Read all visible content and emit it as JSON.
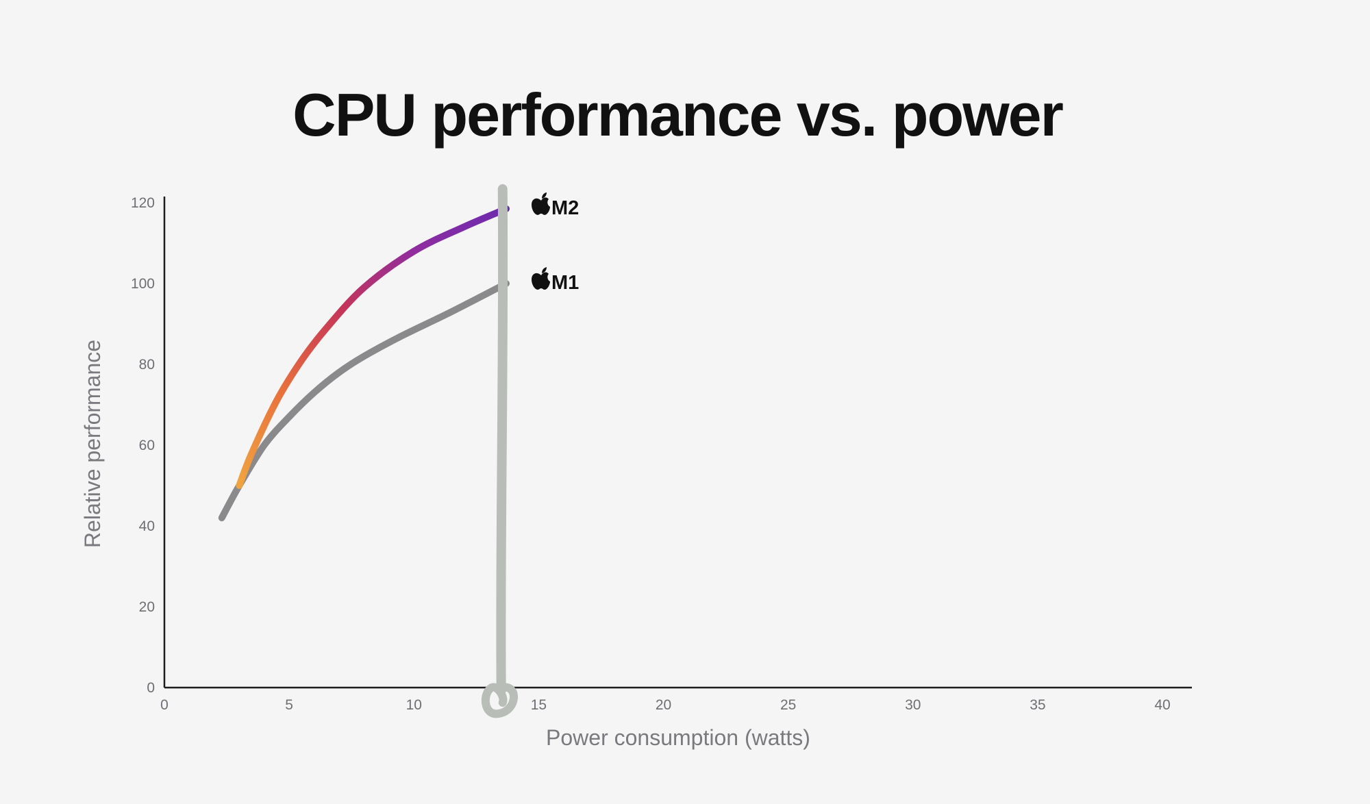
{
  "chart_data": {
    "type": "line",
    "title": "CPU performance vs. power",
    "xlabel": "Power consumption (watts)",
    "ylabel": "Relative performance",
    "xlim": [
      0,
      41
    ],
    "ylim": [
      0,
      120
    ],
    "xticks": [
      "0",
      "5",
      "10",
      "15",
      "20",
      "25",
      "30",
      "35",
      "40"
    ],
    "yticks": [
      "0",
      "20",
      "40",
      "60",
      "80",
      "100",
      "120"
    ],
    "grid": false,
    "legend": "none",
    "series": [
      {
        "name": "M2",
        "color_gradient": [
          "#f0a341",
          "#e8703c",
          "#c63558",
          "#8f2c9f",
          "#6a2bb0"
        ],
        "x": [
          3.0,
          3.5,
          4.5,
          5.5,
          6.5,
          8.0,
          10.0,
          12.0,
          13.7
        ],
        "y": [
          50,
          58,
          71,
          81,
          89,
          99,
          108,
          114,
          118.5
        ]
      },
      {
        "name": "M1",
        "color": "#8a8a8d",
        "x": [
          2.3,
          3.0,
          4.0,
          5.0,
          6.0,
          7.0,
          8.0,
          9.5,
          11.5,
          13.7
        ],
        "y": [
          42,
          50,
          60,
          67,
          73,
          78,
          82,
          87,
          93,
          100
        ]
      }
    ],
    "annotation_marker": {
      "x": 13.5,
      "color": "#b8bdb8"
    }
  }
}
